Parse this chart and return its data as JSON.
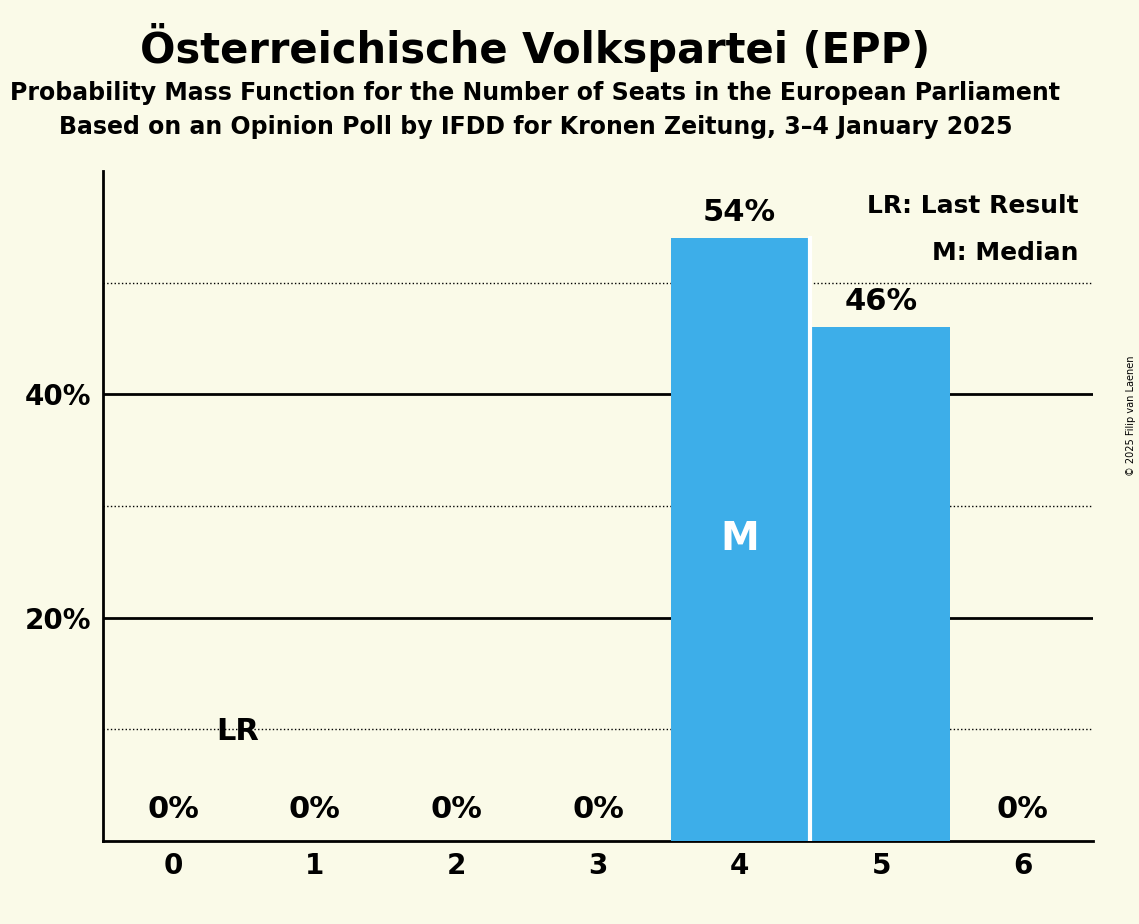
{
  "title": "Österreichische Volkspartei (EPP)",
  "subtitle1": "Probability Mass Function for the Number of Seats in the European Parliament",
  "subtitle2": "Based on an Opinion Poll by IFDD for Kronen Zeitung, 3–4 January 2025",
  "copyright": "© 2025 Filip van Laenen",
  "categories": [
    0,
    1,
    2,
    3,
    4,
    5,
    6
  ],
  "values": [
    0,
    0,
    0,
    0,
    54,
    46,
    0
  ],
  "bar_color": "#3daee9",
  "background_color": "#fafae8",
  "median_seat": 4,
  "lr_seat": 4,
  "median_label": "M",
  "lr_label": "LR",
  "legend_lr": "LR: Last Result",
  "legend_m": "M: Median",
  "dotted_grid": [
    10,
    30,
    50
  ],
  "solid_grid": [
    20,
    40
  ],
  "xlim": [
    -0.5,
    6.5
  ],
  "ylim": [
    0,
    60
  ],
  "bar_width": 0.97,
  "title_fontsize": 30,
  "subtitle_fontsize": 17,
  "tick_fontsize": 20,
  "annotation_fontsize": 22,
  "legend_fontsize": 18,
  "median_fontsize": 28,
  "median_text_color": "#ffffff",
  "lr_text_color": "#000000"
}
